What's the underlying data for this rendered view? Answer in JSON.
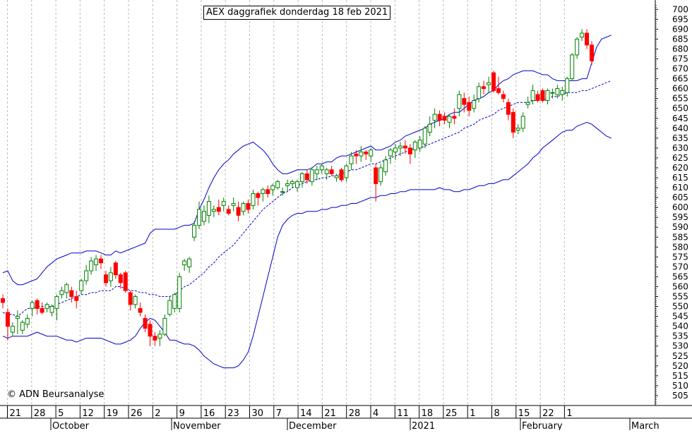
{
  "chart_data": {
    "type": "candlestick",
    "title": "AEX daggrafiek donderdag 18 feb 2021",
    "copyright": "© ADN Beursanalyse",
    "ylim": [
      500,
      703
    ],
    "y_ticks": [
      505,
      510,
      515,
      520,
      525,
      530,
      535,
      540,
      545,
      550,
      555,
      560,
      565,
      570,
      575,
      580,
      585,
      590,
      595,
      600,
      605,
      610,
      615,
      620,
      625,
      630,
      635,
      640,
      645,
      650,
      655,
      660,
      665,
      670,
      675,
      680,
      685,
      690,
      695,
      700
    ],
    "x_day_ticks": [
      "21",
      "28",
      "5",
      "12",
      "19",
      "26",
      "2",
      "9",
      "16",
      "23",
      "30",
      "7",
      "14",
      "21",
      "28",
      "4",
      "11",
      "18",
      "25",
      "1",
      "8",
      "15",
      "22",
      "1"
    ],
    "month_labels": [
      "October",
      "November",
      "December",
      "2021",
      "February",
      "March"
    ],
    "colors": {
      "up": "#008000",
      "down": "#ff0000",
      "bands": "#0000cc",
      "grid": "#bbbbbb"
    },
    "candles": [
      {
        "o": 554,
        "h": 556,
        "l": 549,
        "c": 552
      },
      {
        "o": 547,
        "h": 549,
        "l": 533,
        "c": 540
      },
      {
        "o": 537,
        "h": 542,
        "l": 535,
        "c": 540
      },
      {
        "o": 544,
        "h": 548,
        "l": 536,
        "c": 545
      },
      {
        "o": 538,
        "h": 543,
        "l": 536,
        "c": 542
      },
      {
        "o": 541,
        "h": 546,
        "l": 539,
        "c": 544
      },
      {
        "o": 549,
        "h": 553,
        "l": 545,
        "c": 552
      },
      {
        "o": 553,
        "h": 554,
        "l": 546,
        "c": 549
      },
      {
        "o": 549,
        "h": 552,
        "l": 546,
        "c": 547
      },
      {
        "o": 549,
        "h": 552,
        "l": 547,
        "c": 551
      },
      {
        "o": 547,
        "h": 551,
        "l": 545,
        "c": 550
      },
      {
        "o": 549,
        "h": 556,
        "l": 543,
        "c": 555
      },
      {
        "o": 556,
        "h": 560,
        "l": 554,
        "c": 558
      },
      {
        "o": 557,
        "h": 562,
        "l": 554,
        "c": 561
      },
      {
        "o": 558,
        "h": 560,
        "l": 552,
        "c": 555
      },
      {
        "o": 555,
        "h": 558,
        "l": 549,
        "c": 553
      },
      {
        "o": 558,
        "h": 564,
        "l": 556,
        "c": 563
      },
      {
        "o": 563,
        "h": 571,
        "l": 561,
        "c": 568
      },
      {
        "o": 568,
        "h": 575,
        "l": 566,
        "c": 573
      },
      {
        "o": 571,
        "h": 576,
        "l": 568,
        "c": 574
      },
      {
        "o": 574,
        "h": 576,
        "l": 569,
        "c": 572
      },
      {
        "o": 566,
        "h": 568,
        "l": 560,
        "c": 562
      },
      {
        "o": 563,
        "h": 570,
        "l": 560,
        "c": 567
      },
      {
        "o": 572,
        "h": 573,
        "l": 564,
        "c": 566
      },
      {
        "o": 566,
        "h": 567,
        "l": 559,
        "c": 562
      },
      {
        "o": 567,
        "h": 568,
        "l": 557,
        "c": 558
      },
      {
        "o": 557,
        "h": 558,
        "l": 548,
        "c": 551
      },
      {
        "o": 551,
        "h": 556,
        "l": 549,
        "c": 555
      },
      {
        "o": 549,
        "h": 552,
        "l": 545,
        "c": 547
      },
      {
        "o": 544,
        "h": 546,
        "l": 537,
        "c": 539
      },
      {
        "o": 541,
        "h": 543,
        "l": 530,
        "c": 535
      },
      {
        "o": 535,
        "h": 537,
        "l": 530,
        "c": 533
      },
      {
        "o": 534,
        "h": 538,
        "l": 530,
        "c": 536
      },
      {
        "o": 536,
        "h": 546,
        "l": 535,
        "c": 544
      },
      {
        "o": 546,
        "h": 555,
        "l": 545,
        "c": 553
      },
      {
        "o": 549,
        "h": 557,
        "l": 547,
        "c": 556
      },
      {
        "o": 549,
        "h": 567,
        "l": 547,
        "c": 565
      },
      {
        "o": 571,
        "h": 574,
        "l": 568,
        "c": 573
      },
      {
        "o": 570,
        "h": 575,
        "l": 567,
        "c": 574
      },
      {
        "o": 585,
        "h": 593,
        "l": 583,
        "c": 591
      },
      {
        "o": 591,
        "h": 603,
        "l": 589,
        "c": 599
      },
      {
        "o": 593,
        "h": 601,
        "l": 591,
        "c": 598
      },
      {
        "o": 596,
        "h": 606,
        "l": 592,
        "c": 603
      },
      {
        "o": 598,
        "h": 601,
        "l": 595,
        "c": 599
      },
      {
        "o": 600,
        "h": 604,
        "l": 596,
        "c": 598
      },
      {
        "o": 601,
        "h": 605,
        "l": 598,
        "c": 603
      },
      {
        "o": 599,
        "h": 601,
        "l": 596,
        "c": 597
      },
      {
        "o": 601,
        "h": 605,
        "l": 598,
        "c": 602
      },
      {
        "o": 600,
        "h": 603,
        "l": 593,
        "c": 596
      },
      {
        "o": 598,
        "h": 603,
        "l": 596,
        "c": 602
      },
      {
        "o": 602,
        "h": 604,
        "l": 597,
        "c": 599
      },
      {
        "o": 601,
        "h": 609,
        "l": 599,
        "c": 607
      },
      {
        "o": 607,
        "h": 608,
        "l": 601,
        "c": 605
      },
      {
        "o": 607,
        "h": 610,
        "l": 603,
        "c": 609
      },
      {
        "o": 609,
        "h": 611,
        "l": 605,
        "c": 607
      },
      {
        "o": 609,
        "h": 612,
        "l": 606,
        "c": 611
      },
      {
        "o": 610,
        "h": 614,
        "l": 609,
        "c": 613
      },
      {
        "o": 608,
        "h": 610,
        "l": 606,
        "c": 608
      },
      {
        "o": 611,
        "h": 614,
        "l": 608,
        "c": 612
      },
      {
        "o": 612,
        "h": 614,
        "l": 610,
        "c": 613
      },
      {
        "o": 610,
        "h": 614,
        "l": 608,
        "c": 613
      },
      {
        "o": 613,
        "h": 618,
        "l": 610,
        "c": 617
      },
      {
        "o": 617,
        "h": 619,
        "l": 612,
        "c": 614
      },
      {
        "o": 613,
        "h": 620,
        "l": 611,
        "c": 619
      },
      {
        "o": 617,
        "h": 621,
        "l": 614,
        "c": 619
      },
      {
        "o": 619,
        "h": 622,
        "l": 617,
        "c": 621
      },
      {
        "o": 617,
        "h": 620,
        "l": 614,
        "c": 619
      },
      {
        "o": 619,
        "h": 621,
        "l": 616,
        "c": 617
      },
      {
        "o": 615,
        "h": 617,
        "l": 613,
        "c": 616
      },
      {
        "o": 619,
        "h": 620,
        "l": 613,
        "c": 614
      },
      {
        "o": 615,
        "h": 622,
        "l": 613,
        "c": 621
      },
      {
        "o": 622,
        "h": 628,
        "l": 619,
        "c": 626
      },
      {
        "o": 627,
        "h": 629,
        "l": 622,
        "c": 626
      },
      {
        "o": 626,
        "h": 631,
        "l": 623,
        "c": 628
      },
      {
        "o": 628,
        "h": 629,
        "l": 624,
        "c": 627
      },
      {
        "o": 626,
        "h": 630,
        "l": 623,
        "c": 629
      },
      {
        "o": 620,
        "h": 622,
        "l": 603,
        "c": 612
      },
      {
        "o": 613,
        "h": 622,
        "l": 611,
        "c": 620
      },
      {
        "o": 618,
        "h": 626,
        "l": 616,
        "c": 624
      },
      {
        "o": 626,
        "h": 630,
        "l": 622,
        "c": 629
      },
      {
        "o": 628,
        "h": 632,
        "l": 624,
        "c": 630
      },
      {
        "o": 630,
        "h": 633,
        "l": 626,
        "c": 631
      },
      {
        "o": 631,
        "h": 634,
        "l": 627,
        "c": 630
      },
      {
        "o": 630,
        "h": 632,
        "l": 622,
        "c": 627
      },
      {
        "o": 629,
        "h": 634,
        "l": 625,
        "c": 633
      },
      {
        "o": 630,
        "h": 636,
        "l": 628,
        "c": 634
      },
      {
        "o": 632,
        "h": 641,
        "l": 630,
        "c": 640
      },
      {
        "o": 638,
        "h": 646,
        "l": 636,
        "c": 642
      },
      {
        "o": 644,
        "h": 650,
        "l": 640,
        "c": 647
      },
      {
        "o": 647,
        "h": 649,
        "l": 641,
        "c": 644
      },
      {
        "o": 646,
        "h": 648,
        "l": 642,
        "c": 644
      },
      {
        "o": 643,
        "h": 647,
        "l": 640,
        "c": 646
      },
      {
        "o": 646,
        "h": 650,
        "l": 642,
        "c": 645
      },
      {
        "o": 650,
        "h": 659,
        "l": 646,
        "c": 657
      },
      {
        "o": 655,
        "h": 658,
        "l": 648,
        "c": 652
      },
      {
        "o": 653,
        "h": 656,
        "l": 646,
        "c": 649
      },
      {
        "o": 650,
        "h": 657,
        "l": 648,
        "c": 654
      },
      {
        "o": 655,
        "h": 663,
        "l": 653,
        "c": 661
      },
      {
        "o": 661,
        "h": 664,
        "l": 657,
        "c": 660
      },
      {
        "o": 662,
        "h": 666,
        "l": 658,
        "c": 663
      },
      {
        "o": 668,
        "h": 669,
        "l": 658,
        "c": 659
      },
      {
        "o": 660,
        "h": 666,
        "l": 657,
        "c": 658
      },
      {
        "o": 657,
        "h": 659,
        "l": 653,
        "c": 655
      },
      {
        "o": 653,
        "h": 655,
        "l": 644,
        "c": 647
      },
      {
        "o": 648,
        "h": 650,
        "l": 635,
        "c": 638
      },
      {
        "o": 639,
        "h": 642,
        "l": 637,
        "c": 640
      },
      {
        "o": 640,
        "h": 648,
        "l": 638,
        "c": 646
      },
      {
        "o": 652,
        "h": 656,
        "l": 650,
        "c": 653
      },
      {
        "o": 654,
        "h": 662,
        "l": 652,
        "c": 659
      },
      {
        "o": 657,
        "h": 659,
        "l": 653,
        "c": 654
      },
      {
        "o": 659,
        "h": 660,
        "l": 653,
        "c": 654
      },
      {
        "o": 654,
        "h": 660,
        "l": 652,
        "c": 659
      },
      {
        "o": 658,
        "h": 660,
        "l": 655,
        "c": 658
      },
      {
        "o": 657,
        "h": 662,
        "l": 655,
        "c": 660
      },
      {
        "o": 657,
        "h": 661,
        "l": 654,
        "c": 659
      },
      {
        "o": 658,
        "h": 666,
        "l": 656,
        "c": 665
      },
      {
        "o": 665,
        "h": 678,
        "l": 664,
        "c": 677
      },
      {
        "o": 677,
        "h": 686,
        "l": 675,
        "c": 685
      },
      {
        "o": 686,
        "h": 690,
        "l": 684,
        "c": 688
      },
      {
        "o": 688,
        "h": 690,
        "l": 680,
        "c": 682
      },
      {
        "o": 682,
        "h": 684,
        "l": 672,
        "c": 674
      }
    ],
    "upper_band": [
      567,
      568,
      563,
      561,
      561,
      562,
      563,
      564,
      567,
      570,
      572,
      574,
      575,
      576,
      577,
      577,
      577,
      578,
      578,
      578,
      577,
      576,
      576,
      578,
      577,
      578,
      579,
      580,
      581,
      582,
      587,
      589,
      589,
      589,
      589,
      589,
      590,
      591,
      591,
      592,
      599,
      604,
      610,
      615,
      619,
      622,
      624,
      627,
      629,
      631,
      632,
      633,
      631,
      629,
      626,
      622,
      619,
      617,
      617,
      618,
      619,
      619,
      619,
      620,
      622,
      622,
      623,
      623,
      625,
      626,
      626,
      627,
      628,
      629,
      630,
      631,
      629,
      629,
      630,
      631,
      633,
      634,
      636,
      637,
      638,
      639,
      640,
      642,
      643,
      644,
      645,
      647,
      648,
      648,
      650,
      652,
      654,
      655,
      656,
      658,
      659,
      662,
      664,
      665,
      667,
      668,
      669,
      669,
      669,
      668,
      667,
      667,
      665,
      664,
      664,
      664,
      664,
      664,
      665,
      665,
      673,
      681,
      685,
      686,
      687
    ],
    "middle_band": [
      547,
      546,
      546,
      545,
      547,
      549,
      549,
      550,
      550,
      550,
      550,
      551,
      552,
      553,
      554,
      555,
      556,
      556,
      557,
      557,
      558,
      558,
      558,
      560,
      560,
      559,
      558,
      558,
      557,
      557,
      556,
      556,
      555,
      555,
      555,
      556,
      558,
      560,
      561,
      563,
      565,
      567,
      570,
      572,
      575,
      577,
      579,
      581,
      584,
      587,
      590,
      593,
      596,
      599,
      601,
      603,
      605,
      607,
      608,
      610,
      611,
      612,
      613,
      614,
      614,
      615,
      615,
      616,
      616,
      617,
      618,
      619,
      619,
      620,
      621,
      622,
      622,
      623,
      624,
      625,
      626,
      627,
      628,
      629,
      630,
      630,
      631,
      632,
      633,
      634,
      635,
      636,
      637,
      638,
      640,
      641,
      642,
      644,
      645,
      646,
      647,
      649,
      650,
      651,
      652,
      653,
      653,
      653,
      654,
      654,
      654,
      655,
      656,
      656,
      657,
      658,
      658,
      658,
      659,
      659,
      660,
      661,
      662,
      663,
      664
    ],
    "lower_band": [
      535,
      534,
      535,
      535,
      535,
      535,
      536,
      537,
      536,
      535,
      535,
      535,
      534,
      533,
      533,
      532,
      533,
      534,
      534,
      534,
      534,
      533,
      532,
      531,
      531,
      532,
      533,
      535,
      539,
      542,
      544,
      543,
      540,
      537,
      533,
      533,
      532,
      531,
      531,
      530,
      528,
      525,
      523,
      521,
      520,
      519,
      519,
      519,
      520,
      523,
      527,
      535,
      545,
      555,
      565,
      575,
      585,
      591,
      594,
      596,
      597,
      597,
      598,
      598,
      598,
      599,
      599,
      600,
      600,
      601,
      601,
      602,
      602,
      603,
      604,
      605,
      605,
      606,
      606,
      607,
      607,
      608,
      608,
      609,
      609,
      609,
      609,
      609,
      609,
      610,
      609,
      609,
      608,
      608,
      609,
      609,
      610,
      611,
      611,
      612,
      612,
      613,
      614,
      614,
      616,
      618,
      620,
      622,
      625,
      627,
      630,
      632,
      634,
      636,
      638,
      639,
      639,
      641,
      642,
      643,
      642,
      640,
      638,
      636,
      635
    ]
  }
}
